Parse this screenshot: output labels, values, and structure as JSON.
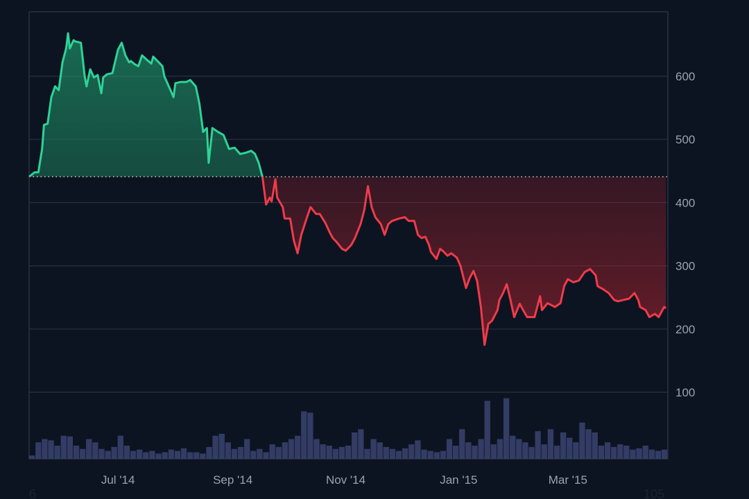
{
  "chart_data": {
    "type": "area",
    "variant": "baseline",
    "title": "",
    "xlabel": "",
    "ylabel": "",
    "baseline_value": 441,
    "xlim": [
      "2014-05-14",
      "2015-04-24"
    ],
    "ylim": [
      0,
      700
    ],
    "y_axis_position": "right",
    "grid": true,
    "colors": {
      "background": "#0d1421",
      "above_line": "#2ed397",
      "above_fill": "#1f8a63",
      "below_line": "#ef3b4a",
      "below_fill": "#8a1f2a",
      "volume": "#3a4370",
      "grid": "#283040",
      "axis_text": "#9aa3b2"
    },
    "y_ticks": [
      "100",
      "200",
      "300",
      "400",
      "500",
      "600"
    ],
    "y_tick_values": [
      100,
      200,
      300,
      400,
      500,
      600
    ],
    "x_ticks": [
      "Jul '14",
      "Sep '14",
      "Nov '14",
      "Jan '15",
      "Mar '15"
    ],
    "x_tick_dates": [
      "2014-07-01",
      "2014-09-01",
      "2014-11-01",
      "2015-01-01",
      "2015-03-01"
    ],
    "corner_labels": {
      "left": "6",
      "right": "105"
    },
    "series": [
      {
        "x": [
          "2014-05-14",
          "2014-05-17",
          "2014-05-19",
          "2014-05-21",
          "2014-05-22",
          "2014-05-24",
          "2014-05-26",
          "2014-05-28",
          "2014-05-30",
          "2014-06-01",
          "2014-06-03",
          "2014-06-04",
          "2014-06-05",
          "2014-06-07",
          "2014-06-08",
          "2014-06-11",
          "2014-06-13",
          "2014-06-14",
          "2014-06-16",
          "2014-06-18",
          "2014-06-20",
          "2014-06-22",
          "2014-06-23",
          "2014-06-25",
          "2014-06-28",
          "2014-07-01",
          "2014-07-03",
          "2014-07-05",
          "2014-07-07",
          "2014-07-08",
          "2014-07-10",
          "2014-07-12",
          "2014-07-14",
          "2014-07-17",
          "2014-07-19",
          "2014-07-20",
          "2014-07-23",
          "2014-07-25",
          "2014-07-26",
          "2014-07-28",
          "2014-07-31",
          "2014-08-01",
          "2014-08-04",
          "2014-08-07",
          "2014-08-09",
          "2014-08-12",
          "2014-08-14",
          "2014-08-16",
          "2014-08-18",
          "2014-08-19",
          "2014-08-21",
          "2014-08-24",
          "2014-08-27",
          "2014-08-30",
          "2014-09-02",
          "2014-09-05",
          "2014-09-08",
          "2014-09-11",
          "2014-09-13",
          "2014-09-15",
          "2014-09-17",
          "2014-09-19",
          "2014-09-21",
          "2014-09-22",
          "2014-09-24",
          "2014-09-25",
          "2014-09-28",
          "2014-09-29",
          "2014-10-02",
          "2014-10-04",
          "2014-10-06",
          "2014-10-08",
          "2014-10-11",
          "2014-10-13",
          "2014-10-16",
          "2014-10-18",
          "2014-10-21",
          "2014-10-23",
          "2014-10-25",
          "2014-10-27",
          "2014-10-30",
          "2014-11-01",
          "2014-11-04",
          "2014-11-06",
          "2014-11-09",
          "2014-11-11",
          "2014-11-13",
          "2014-11-15",
          "2014-11-17",
          "2014-11-20",
          "2014-11-22",
          "2014-11-24",
          "2014-11-26",
          "2014-11-30",
          "2014-12-03",
          "2014-12-05",
          "2014-12-08",
          "2014-12-10",
          "2014-12-12",
          "2014-12-14",
          "2014-12-16",
          "2014-12-17",
          "2014-12-20",
          "2014-12-22",
          "2014-12-24",
          "2014-12-26",
          "2014-12-28",
          "2014-12-31",
          "2015-01-02",
          "2015-01-05",
          "2015-01-07",
          "2015-01-09",
          "2015-01-11",
          "2015-01-13",
          "2015-01-15",
          "2015-01-17",
          "2015-01-19",
          "2015-01-22",
          "2015-01-23",
          "2015-01-25",
          "2015-01-27",
          "2015-01-29",
          "2015-01-31",
          "2015-02-03",
          "2015-02-05",
          "2015-02-07",
          "2015-02-11",
          "2015-02-14",
          "2015-02-15",
          "2015-02-18",
          "2015-02-22",
          "2015-02-25",
          "2015-02-27",
          "2015-03-01",
          "2015-03-04",
          "2015-03-07",
          "2015-03-10",
          "2015-03-13",
          "2015-03-16",
          "2015-03-17",
          "2015-03-20",
          "2015-03-23",
          "2015-03-26",
          "2015-03-28",
          "2015-03-31",
          "2015-04-03",
          "2015-04-06",
          "2015-04-08",
          "2015-04-09",
          "2015-04-12",
          "2015-04-14",
          "2015-04-17",
          "2015-04-19",
          "2015-04-22",
          "2015-04-23"
        ],
        "values": [
          441,
          448,
          448,
          485,
          523,
          525,
          567,
          584,
          578,
          622,
          644,
          668,
          644,
          657,
          655,
          653,
          600,
          584,
          611,
          598,
          602,
          573,
          598,
          603,
          605,
          642,
          653,
          633,
          622,
          624,
          619,
          616,
          633,
          625,
          620,
          631,
          622,
          616,
          600,
          587,
          567,
          589,
          591,
          591,
          594,
          584,
          556,
          512,
          518,
          463,
          518,
          512,
          507,
          485,
          487,
          477,
          479,
          482,
          477,
          463,
          441,
          397,
          408,
          402,
          437,
          408,
          393,
          375,
          375,
          340,
          320,
          349,
          376,
          393,
          382,
          382,
          368,
          355,
          344,
          338,
          327,
          324,
          333,
          344,
          366,
          388,
          426,
          393,
          377,
          366,
          349,
          366,
          371,
          375,
          377,
          371,
          371,
          349,
          344,
          346,
          333,
          322,
          311,
          327,
          322,
          316,
          320,
          313,
          300,
          265,
          281,
          292,
          276,
          235,
          175,
          208,
          213,
          230,
          246,
          257,
          271,
          246,
          219,
          240,
          229,
          219,
          219,
          252,
          230,
          241,
          235,
          241,
          268,
          279,
          274,
          277,
          290,
          295,
          285,
          268,
          263,
          257,
          246,
          244,
          246,
          248,
          257,
          246,
          235,
          230,
          219,
          224,
          219,
          235,
          233
        ]
      }
    ],
    "volume": [
      5,
      25,
      30,
      28,
      20,
      35,
      34,
      20,
      15,
      30,
      25,
      15,
      12,
      18,
      35,
      20,
      12,
      14,
      10,
      12,
      8,
      10,
      14,
      12,
      16,
      10,
      10,
      8,
      18,
      35,
      38,
      25,
      15,
      18,
      30,
      12,
      15,
      10,
      22,
      18,
      25,
      30,
      35,
      72,
      70,
      30,
      22,
      20,
      15,
      18,
      20,
      40,
      45,
      15,
      30,
      25,
      18,
      15,
      12,
      16,
      22,
      28,
      14,
      12,
      10,
      12,
      30,
      20,
      45,
      25,
      20,
      30,
      88,
      22,
      30,
      92,
      35,
      30,
      25,
      18,
      42,
      22,
      45,
      20,
      40,
      32,
      25,
      55,
      45,
      40,
      20,
      25,
      18,
      22,
      20,
      14,
      16,
      20,
      14,
      12,
      14
    ]
  }
}
